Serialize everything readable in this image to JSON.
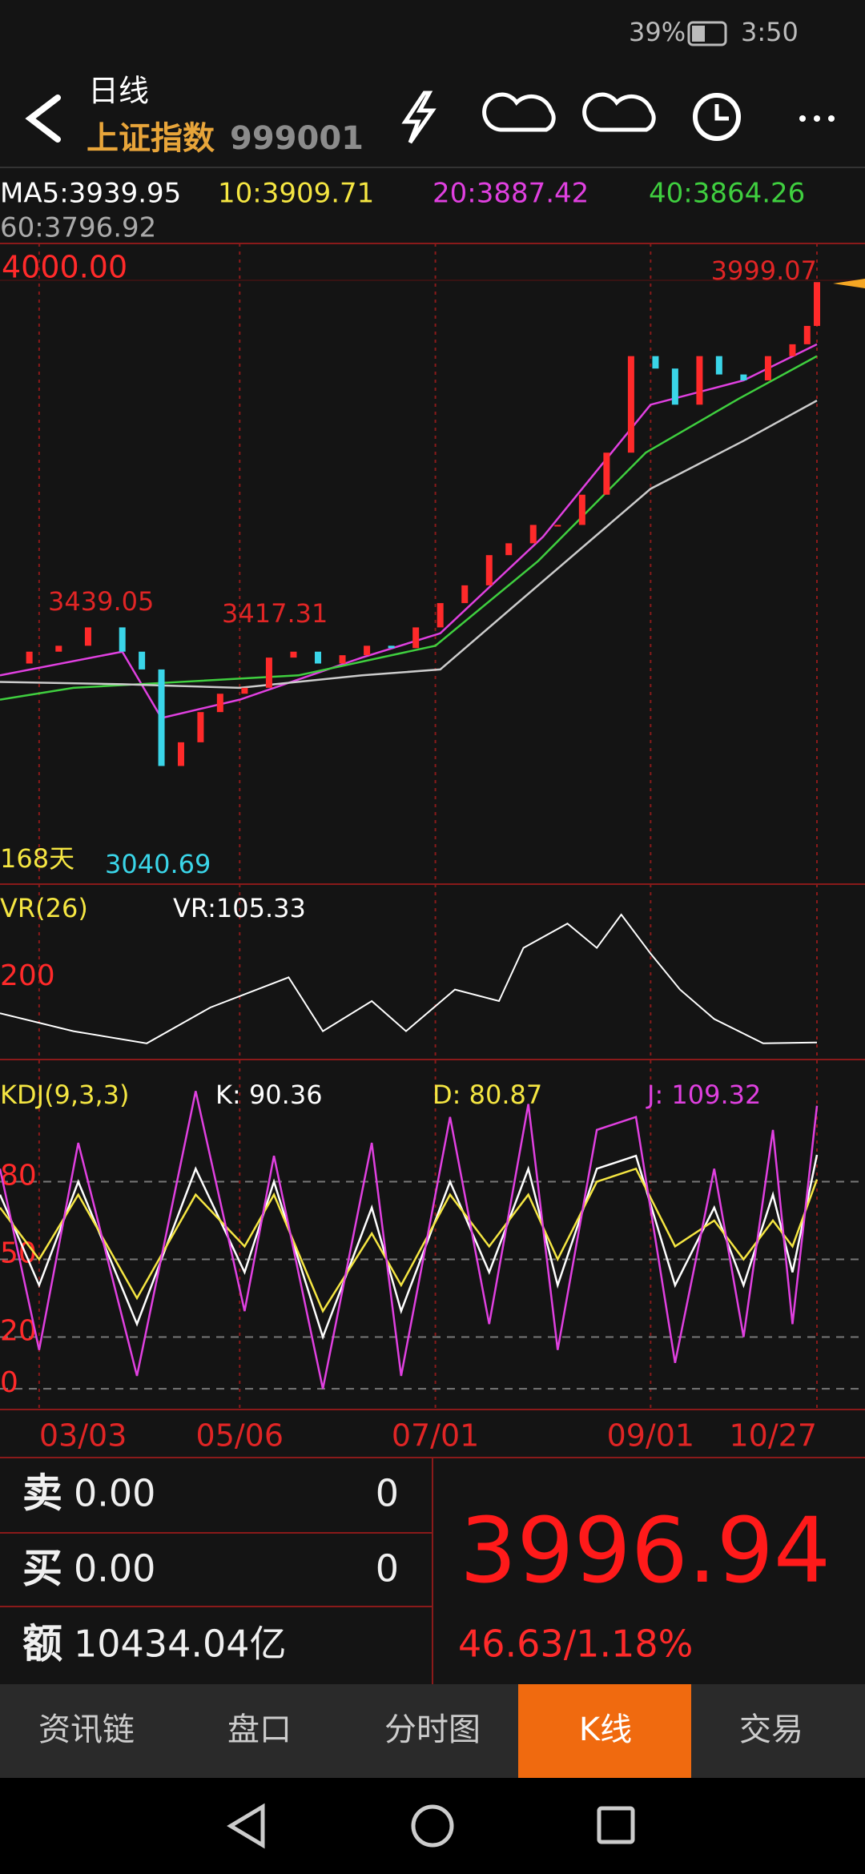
{
  "status_bar": {
    "battery": "39%",
    "time": "3:50"
  },
  "header": {
    "period": "日线",
    "name": "上证指数",
    "code": "999001"
  },
  "chart_data": [
    {
      "type": "candlestick",
      "ma_labels": [
        {
          "text": "MA5:3939.95",
          "color": "#ffffff"
        },
        {
          "text": "10:3909.71",
          "color": "#f5e642"
        },
        {
          "text": "20:3887.42",
          "color": "#e040e0"
        },
        {
          "text": "40:3864.26",
          "color": "#3fcf3f"
        },
        {
          "text": "60:3796.92",
          "color": "#aaaaaa"
        }
      ],
      "up_color": "#ff2a2a",
      "down_color": "#3ad5e8",
      "x": [
        0,
        6,
        12,
        18,
        25,
        29,
        33,
        37,
        41,
        45,
        50,
        55,
        60,
        65,
        70,
        75,
        80,
        85,
        90,
        95,
        100,
        104,
        109,
        114,
        119,
        124,
        129,
        134,
        138,
        143,
        147,
        152,
        157,
        162,
        165,
        167
      ],
      "values": [
        3353,
        3373,
        3383,
        3414,
        3373,
        3343,
        3180,
        3220,
        3271,
        3302,
        3312,
        3363,
        3373,
        3353,
        3367,
        3383,
        3379,
        3414,
        3455,
        3485,
        3536,
        3556,
        3587,
        3587,
        3638,
        3709,
        3872,
        3851,
        3790,
        3872,
        3841,
        3831,
        3872,
        3892,
        3923,
        3996.94
      ],
      "ma_lines": [
        {
          "color": "#e040e0",
          "x": [
            0,
            25,
            33,
            49,
            74,
            90,
            111,
            133,
            152,
            167
          ],
          "values": [
            3333,
            3373,
            3261,
            3292,
            3363,
            3404,
            3567,
            3790,
            3831,
            3892
          ]
        },
        {
          "color": "#3fcf3f",
          "x": [
            0,
            15,
            37,
            61,
            89,
            110,
            132,
            151,
            167
          ],
          "values": [
            3292,
            3312,
            3322,
            3333,
            3383,
            3526,
            3709,
            3800,
            3872
          ]
        },
        {
          "color": "#cccccc",
          "x": [
            0,
            25,
            49,
            74,
            90,
            110,
            133,
            152,
            167
          ],
          "values": [
            3322,
            3318,
            3312,
            3333,
            3343,
            3485,
            3648,
            3729,
            3797
          ]
        }
      ],
      "xlim": [
        0,
        167
      ],
      "ylim": [
        3040,
        4000
      ],
      "yticks": [
        {
          "value": 4000,
          "label": "4000.00"
        }
      ],
      "xticks": [
        {
          "value": 8,
          "label": "03/03"
        },
        {
          "value": 49,
          "label": "05/06"
        },
        {
          "value": 89,
          "label": "07/01"
        },
        {
          "value": 133,
          "label": "09/01"
        },
        {
          "value": 167,
          "label": "10/27"
        }
      ],
      "high_label": "3999.07",
      "peak_labels": [
        "3439.05",
        "3417.31"
      ],
      "low_label": "3040.69",
      "days_label": "168天"
    },
    {
      "type": "line",
      "title": "VR(26)",
      "readout": "VR:105.33",
      "color": "#ffffff",
      "x": [
        0,
        15,
        30,
        43,
        59,
        66,
        76,
        83,
        93,
        102,
        107,
        116,
        122,
        127,
        133,
        139,
        146,
        156,
        167
      ],
      "values": [
        151,
        123,
        104,
        160,
        207,
        123,
        170,
        123,
        188,
        170,
        253,
        291,
        253,
        305,
        244,
        188,
        142,
        104,
        105.33
      ],
      "xlim": [
        0,
        167
      ],
      "ylim": [
        80,
        345
      ],
      "yticks": [
        200
      ]
    },
    {
      "type": "line",
      "title": "KDJ(9,3,3)",
      "x": [
        0,
        8,
        16,
        28,
        40,
        50,
        56,
        66,
        76,
        82,
        92,
        100,
        108,
        114,
        122,
        130,
        138,
        146,
        152,
        158,
        162,
        167
      ],
      "series": [
        {
          "label": "K: 90.36",
          "color": "#ffffff",
          "values": [
            75,
            40,
            80,
            25,
            85,
            45,
            80,
            20,
            70,
            30,
            80,
            45,
            85,
            40,
            85,
            90,
            40,
            70,
            40,
            75,
            45,
            90.36
          ]
        },
        {
          "label": "D: 80.87",
          "color": "#f5e642",
          "values": [
            70,
            50,
            75,
            35,
            75,
            55,
            75,
            30,
            60,
            40,
            75,
            55,
            75,
            50,
            80,
            85,
            55,
            65,
            50,
            65,
            55,
            80.87
          ]
        },
        {
          "label": "J: 109.32",
          "color": "#e040e0",
          "values": [
            85,
            15,
            95,
            5,
            115,
            30,
            90,
            0,
            95,
            5,
            105,
            25,
            110,
            15,
            100,
            105,
            10,
            85,
            20,
            100,
            25,
            109.32
          ]
        }
      ],
      "xlim": [
        0,
        167
      ],
      "ylim": [
        -8,
        121
      ],
      "yticks": [
        0,
        20,
        50,
        80
      ]
    }
  ],
  "quote": {
    "sell": {
      "label": "卖",
      "price": "0.00",
      "volume": "0"
    },
    "buy": {
      "label": "买",
      "price": "0.00",
      "volume": "0"
    },
    "amount": {
      "label": "额",
      "value": "10434.04亿"
    },
    "price": "3996.94",
    "change": "46.63/1.18%"
  },
  "tabs": {
    "items": [
      "资讯链",
      "盘口",
      "分时图",
      "K线",
      "交易"
    ],
    "active": 3
  }
}
